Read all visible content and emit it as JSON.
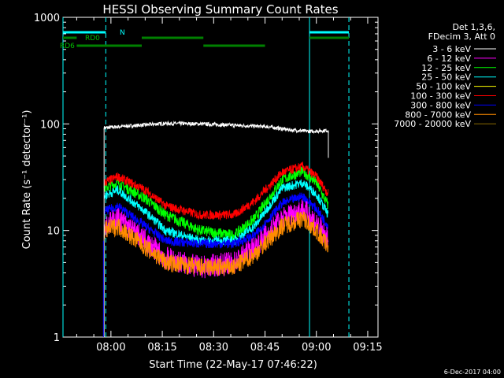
{
  "chart_data": {
    "type": "line",
    "title": "HESSI Observing Summary Count Rates",
    "xlabel": "Start Time (22-May-17 07:46:22)",
    "ylabel": "Count Rate (s⁻¹ detector⁻¹)",
    "yscale": "log",
    "ylim": [
      1,
      1000
    ],
    "xlim_minutes_after_0746": [
      0,
      92
    ],
    "x_ticks": [
      {
        "label": "08:00",
        "t": 14
      },
      {
        "label": "08:15",
        "t": 29
      },
      {
        "label": "08:30",
        "t": 44
      },
      {
        "label": "08:45",
        "t": 59
      },
      {
        "label": "09:00",
        "t": 74
      },
      {
        "label": "09:15",
        "t": 89
      }
    ],
    "y_ticks": [
      {
        "label": "1",
        "v": 1
      },
      {
        "label": "10",
        "v": 10
      },
      {
        "label": "100",
        "v": 100
      },
      {
        "label": "1000",
        "v": 1000
      }
    ],
    "legend": {
      "header1": "Det 1,3,6,",
      "header2": "FDecim 3, Att 0",
      "entries": [
        {
          "label": "3 - 6 keV",
          "color": "#000000"
        },
        {
          "label": "6 - 12 keV",
          "color": "#ff00ff"
        },
        {
          "label": "12 - 25 keV",
          "color": "#00ff00"
        },
        {
          "label": "25 - 50 keV",
          "color": "#00ffff"
        },
        {
          "label": "50 - 100 keV",
          "color": "#ffff00"
        },
        {
          "label": "100 - 300 keV",
          "color": "#ff0000"
        },
        {
          "label": "300 - 800 keV",
          "color": "#0000ff"
        },
        {
          "label": "800 - 7000 keV",
          "color": "#ff8c00"
        },
        {
          "label": "7000 - 20000 keV",
          "color": "#8b6b00"
        }
      ]
    },
    "series": [
      {
        "name": "3 - 6 keV",
        "color": "#000000",
        "x": [
          12,
          20,
          30,
          40,
          50,
          60,
          66,
          72,
          77.5
        ],
        "y": [
          92,
          96,
          101,
          100,
          97,
          94,
          88,
          85,
          87
        ]
      },
      {
        "name": "12 - 25 keV",
        "color": "#00ff00",
        "x": [
          12,
          16,
          24,
          30,
          40,
          50,
          56,
          64,
          70,
          74,
          77.5
        ],
        "y": [
          25,
          28,
          20,
          14,
          10,
          9,
          13,
          30,
          36,
          28,
          17
        ]
      },
      {
        "name": "100 - 300 keV",
        "color": "#ff0000",
        "x": [
          12,
          16,
          24,
          30,
          40,
          50,
          56,
          64,
          70,
          74,
          77.5
        ],
        "y": [
          28,
          32,
          24,
          17,
          14,
          14,
          19,
          35,
          40,
          32,
          22
        ]
      },
      {
        "name": "25 - 50 keV",
        "color": "#00ffff",
        "x": [
          12,
          16,
          24,
          30,
          40,
          50,
          56,
          64,
          70,
          74,
          77.5
        ],
        "y": [
          21,
          24,
          15,
          10,
          8,
          8,
          11,
          25,
          28,
          22,
          14
        ]
      },
      {
        "name": "300 - 800 keV",
        "color": "#0000ff",
        "x": [
          12,
          16,
          24,
          30,
          40,
          50,
          56,
          64,
          70,
          74,
          77.5
        ],
        "y": [
          15,
          17,
          11,
          8,
          7.5,
          7.5,
          9,
          18,
          21,
          16,
          11
        ]
      },
      {
        "name": "6 - 12 keV",
        "color": "#ff00ff",
        "x": [
          12,
          16,
          24,
          30,
          40,
          50,
          56,
          64,
          70,
          74,
          77.5
        ],
        "y": [
          11,
          13,
          8,
          5.5,
          4.5,
          5,
          7,
          13,
          16,
          12,
          8
        ]
      },
      {
        "name": "800 - 7000 keV",
        "color": "#ff8c00",
        "x": [
          12,
          16,
          24,
          30,
          40,
          50,
          56,
          64,
          70,
          74,
          77.5
        ],
        "y": [
          10,
          11,
          7,
          5,
          4.5,
          4.5,
          6,
          11,
          13,
          10,
          7
        ]
      }
    ],
    "flags": {
      "N_label": "N",
      "RD0_label": "RD0",
      "RD6_label": "RD6"
    }
  },
  "footer_date": "6-Dec-2017 04:00"
}
